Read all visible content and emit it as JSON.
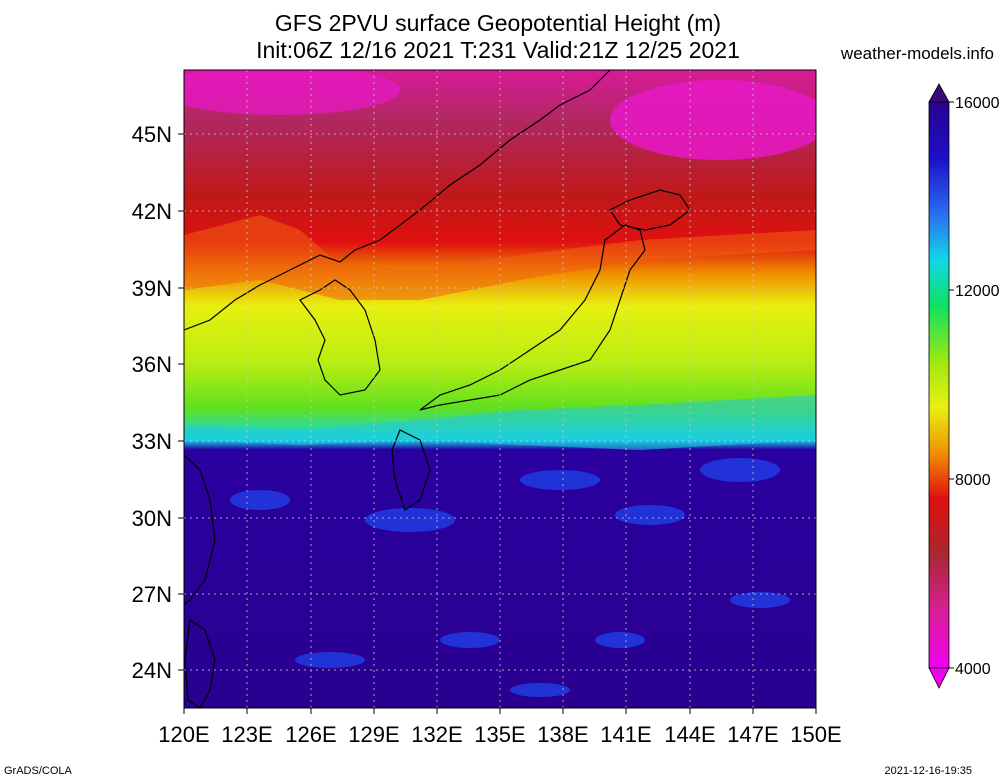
{
  "title_line1": "GFS 2PVU surface Geopotential Height (m)",
  "title_line2": "Init:06Z 12/16 2021 T:231 Valid:21Z 12/25 2021",
  "site": "weather-models.info",
  "lat_labels": [
    "45N",
    "42N",
    "39N",
    "36N",
    "33N",
    "30N",
    "27N",
    "24N"
  ],
  "lon_labels": [
    "120E",
    "123E",
    "126E",
    "129E",
    "132E",
    "135E",
    "138E",
    "141E",
    "144E",
    "147E",
    "150E"
  ],
  "colorbar": {
    "labels": [
      "16000",
      "12000",
      "8000",
      "4000"
    ],
    "colors": [
      "#3b0a7a",
      "#2a0090",
      "#1c10c8",
      "#1f3fe8",
      "#2a70f0",
      "#20a8f0",
      "#10d8e8",
      "#10e0b0",
      "#10e060",
      "#50e020",
      "#a0e810",
      "#e8f010",
      "#f0c800",
      "#f09000",
      "#f05000",
      "#e01010",
      "#c01818",
      "#a82830",
      "#b82860",
      "#d82098",
      "#e818c8",
      "#f000f0"
    ]
  },
  "footer_left": "GrADS/COLA",
  "footer_right": "2021-12-16-19:35"
}
